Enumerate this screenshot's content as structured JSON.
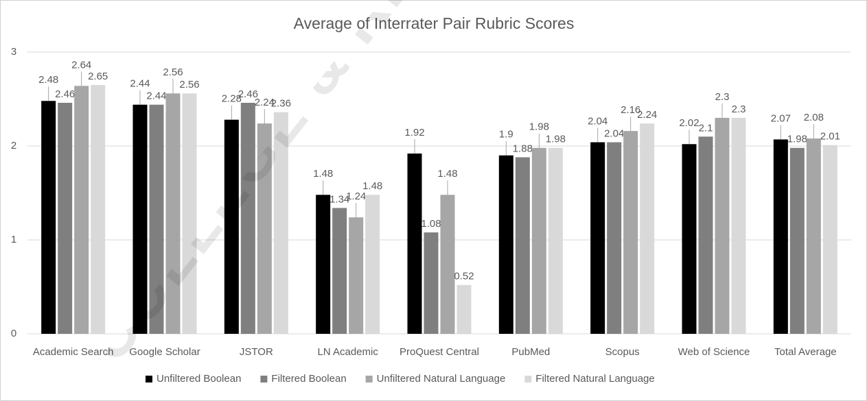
{
  "chart_data": {
    "type": "bar",
    "title": "Average of Interrater Pair Rubric Scores",
    "watermark": "COLLEGE & RESEARCH",
    "categories": [
      "Academic Search",
      "Google Scholar",
      "JSTOR",
      "LN Academic",
      "ProQuest Central",
      "PubMed",
      "Scopus",
      "Web of Science",
      "Total Average"
    ],
    "series": [
      {
        "name": "Unfiltered Boolean",
        "color": "#000000",
        "values": [
          2.48,
          2.44,
          2.28,
          1.48,
          1.92,
          1.9,
          2.04,
          2.02,
          2.07
        ]
      },
      {
        "name": "Filtered Boolean",
        "color": "#7f7f7f",
        "values": [
          2.46,
          2.44,
          2.46,
          1.34,
          1.08,
          1.88,
          2.04,
          2.1,
          1.98
        ]
      },
      {
        "name": "Unfiltered Natural Language",
        "color": "#a6a6a6",
        "values": [
          2.64,
          2.56,
          2.24,
          1.24,
          1.48,
          1.98,
          2.16,
          2.3,
          2.08
        ]
      },
      {
        "name": "Filtered Natural Language",
        "color": "#d9d9d9",
        "values": [
          2.65,
          2.56,
          2.36,
          1.48,
          0.52,
          1.98,
          2.24,
          2.3,
          2.01
        ]
      }
    ],
    "ylim": [
      0,
      3
    ],
    "yticks": [
      0,
      1,
      2,
      3
    ],
    "grid": true,
    "legend": "bottom"
  }
}
